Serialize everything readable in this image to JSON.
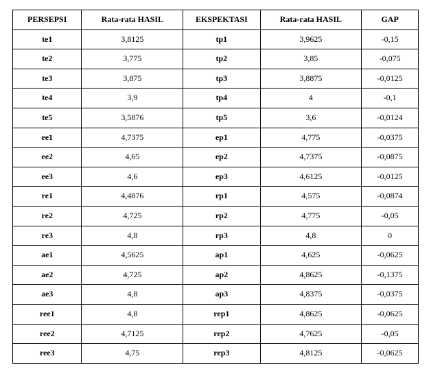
{
  "table": {
    "columns": [
      "PERSEPSI",
      "Rata-rata HASIL",
      "EKSPEKTASI",
      "Rata-rata HASIL",
      "GAP"
    ],
    "rows": [
      [
        "te1",
        "3,8125",
        "tp1",
        "3,9625",
        "-0,15"
      ],
      [
        "te2",
        "3,775",
        "tp2",
        "3,85",
        "-0,075"
      ],
      [
        "te3",
        "3,875",
        "tp3",
        "3,8875",
        "-0,0125"
      ],
      [
        "te4",
        "3,9",
        "tp4",
        "4",
        "-0,1"
      ],
      [
        "te5",
        "3,5876",
        "tp5",
        "3,6",
        "-0,0124"
      ],
      [
        "ee1",
        "4,7375",
        "ep1",
        "4,775",
        "-0,0375"
      ],
      [
        "ee2",
        "4,65",
        "ep2",
        "4,7375",
        "-0,0875"
      ],
      [
        "ee3",
        "4,6",
        "ep3",
        "4,6125",
        "-0,0125"
      ],
      [
        "re1",
        "4,4876",
        "rp1",
        "4,575",
        "-0,0874"
      ],
      [
        "re2",
        "4,725",
        "rp2",
        "4,775",
        "-0,05"
      ],
      [
        "re3",
        "4,8",
        "rp3",
        "4,8",
        "0"
      ],
      [
        "ae1",
        "4,5625",
        "ap1",
        "4,625",
        "-0,0625"
      ],
      [
        "ae2",
        "4,725",
        "ap2",
        "4,8625",
        "-0,1375"
      ],
      [
        "ae3",
        "4,8",
        "ap3",
        "4,8375",
        "-0,0375"
      ],
      [
        "ree1",
        "4,8",
        "rep1",
        "4,8625",
        "-0,0625"
      ],
      [
        "ree2",
        "4,7125",
        "rep2",
        "4,7625",
        "-0,05"
      ],
      [
        "ree3",
        "4,75",
        "rep3",
        "4,8125",
        "-0,0625"
      ]
    ],
    "styling": {
      "border_color": "#000000",
      "background_color": "#ffffff",
      "header_font_weight": "bold",
      "font_family": "Times New Roman",
      "font_size_pt": 9,
      "col_widths_pct": [
        17,
        25,
        19,
        25,
        14
      ],
      "bold_columns": [
        0,
        2
      ]
    }
  }
}
